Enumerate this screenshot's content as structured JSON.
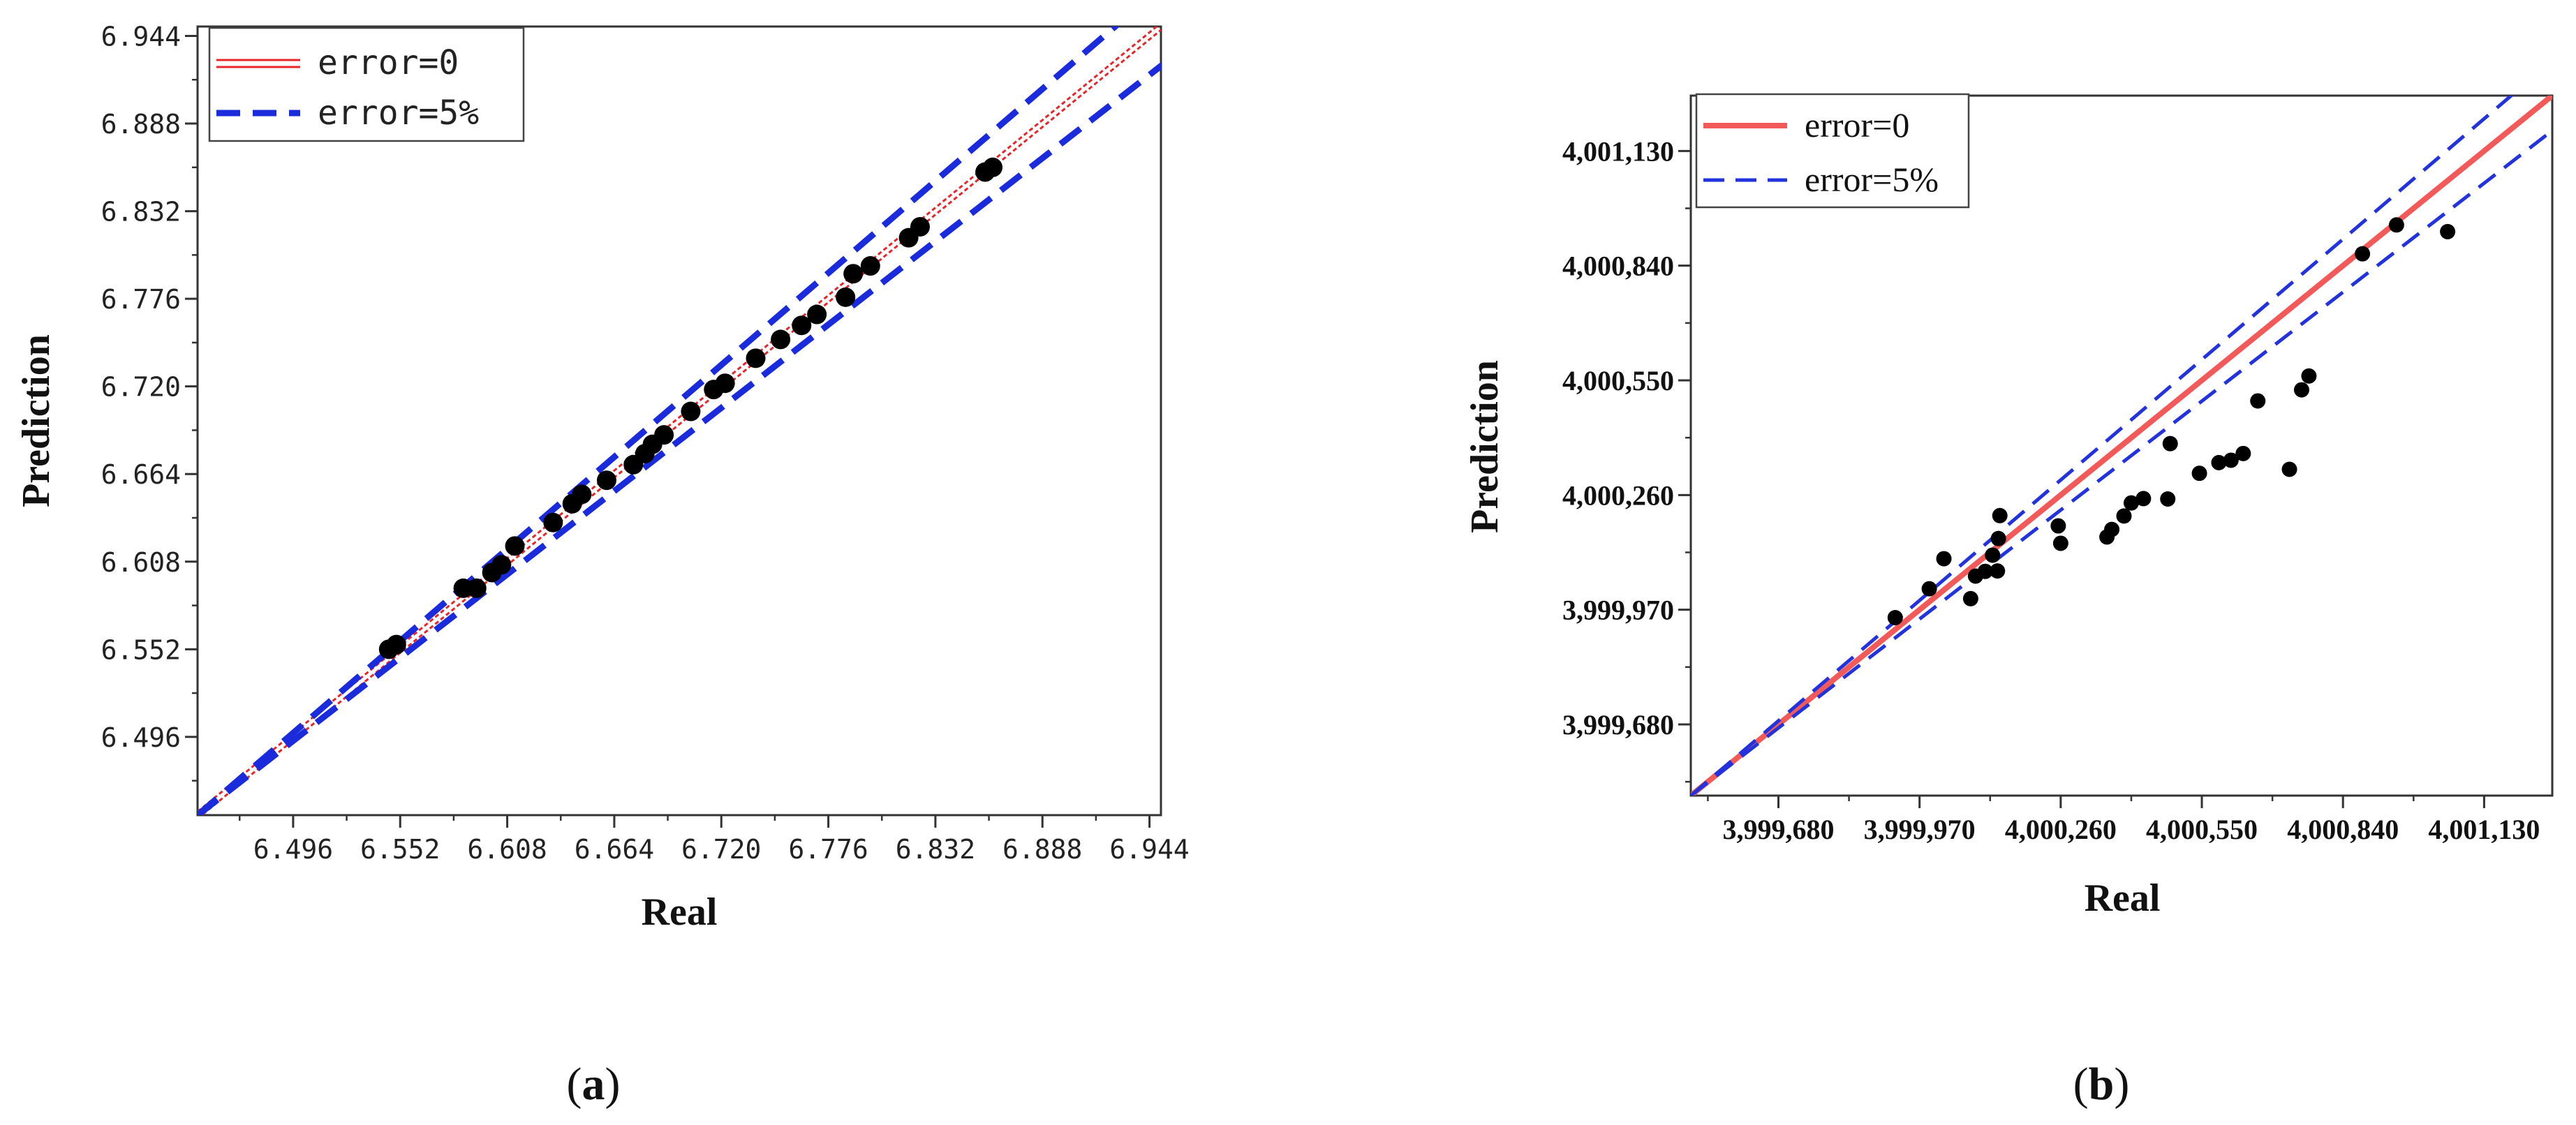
{
  "panels": [
    {
      "label_open": "(",
      "label_letter": "a",
      "label_close": ")"
    },
    {
      "label_open": "(",
      "label_letter": "b",
      "label_close": ")"
    }
  ],
  "chart_data": [
    {
      "type": "scatter",
      "xlabel": "Real",
      "ylabel": "Prediction",
      "xlim": [
        6.446,
        6.95
      ],
      "ylim": [
        6.446,
        6.95
      ],
      "xticks": [
        "6.496",
        "6.552",
        "6.608",
        "6.664",
        "6.720",
        "6.776",
        "6.832",
        "6.888",
        "6.944"
      ],
      "yticks": [
        "6.496",
        "6.552",
        "6.608",
        "6.664",
        "6.720",
        "6.776",
        "6.832",
        "6.888",
        "6.944"
      ],
      "tick_values": [
        6.496,
        6.552,
        6.608,
        6.664,
        6.72,
        6.776,
        6.832,
        6.888,
        6.944
      ],
      "legend_position": "top-left",
      "legend": [
        "error=0",
        "error=5%"
      ],
      "lines": [
        {
          "name": "error=0",
          "slope": 1.0,
          "color": "#e8262a",
          "style": "double"
        },
        {
          "name": "error=5%",
          "slope": 1.05,
          "color": "#1a2bdc",
          "style": "dashed"
        },
        {
          "name": "error=5%",
          "slope": 0.95,
          "color": "#1a2bdc",
          "style": "dashed"
        }
      ],
      "points": {
        "x": [
          6.546,
          6.55,
          6.585,
          6.592,
          6.6,
          6.605,
          6.612,
          6.632,
          6.642,
          6.647,
          6.66,
          6.674,
          6.68,
          6.684,
          6.69,
          6.704,
          6.716,
          6.722,
          6.738,
          6.751,
          6.762,
          6.77,
          6.785,
          6.789,
          6.798,
          6.818,
          6.824,
          6.858,
          6.862
        ],
        "y": [
          6.552,
          6.555,
          6.591,
          6.591,
          6.601,
          6.606,
          6.618,
          6.633,
          6.645,
          6.651,
          6.66,
          6.67,
          6.677,
          6.683,
          6.689,
          6.704,
          6.718,
          6.722,
          6.738,
          6.75,
          6.759,
          6.766,
          6.777,
          6.792,
          6.797,
          6.815,
          6.822,
          6.857,
          6.86
        ]
      },
      "marker_color": "#000000"
    },
    {
      "type": "scatter",
      "xlabel": "Real",
      "ylabel": "Prediction",
      "xlim": [
        3999500,
        4001270
      ],
      "ylim": [
        3999500,
        4001270
      ],
      "xticks": [
        "3,999,680",
        "3,999,970",
        "4,000,260",
        "4,000,550",
        "4,000,840",
        "4,001,130"
      ],
      "yticks": [
        "3,999,680",
        "3,999,970",
        "4,000,260",
        "4,000,550",
        "4,000,840",
        "4,001,130"
      ],
      "tick_values": [
        3999680,
        3999970,
        4000260,
        4000550,
        4000840,
        4001130
      ],
      "legend_position": "top-left",
      "legend": [
        "error=0",
        "error=5%"
      ],
      "lines": [
        {
          "name": "error=0",
          "slope": 1.0,
          "color": "#f25a5a",
          "style": "solid"
        },
        {
          "name": "error=5%",
          "slope": 1.05,
          "color": "#2233dd",
          "style": "dashed"
        },
        {
          "name": "error=5%",
          "slope": 0.95,
          "color": "#2233dd",
          "style": "dashed"
        }
      ],
      "points": {
        "x": [
          3999920,
          3999990,
          4000020,
          4000075,
          4000085,
          4000105,
          4000120,
          4000130,
          4000132,
          4000135,
          4000260,
          4000255,
          4000355,
          4000365,
          4000390,
          4000405,
          4000430,
          4000480,
          4000485,
          4000545,
          4000585,
          4000610,
          4000635,
          4000665,
          4000730,
          4000755,
          4000770,
          4000880,
          4000950,
          4001055
        ],
        "y": [
          3999950,
          4000023,
          4000099,
          3999998,
          4000055,
          4000067,
          4000108,
          4000068,
          4000150,
          4000208,
          4000138,
          4000182,
          4000154,
          4000173,
          4000207,
          4000240,
          4000251,
          4000250,
          4000390,
          4000315,
          4000342,
          4000348,
          4000365,
          4000498,
          4000325,
          4000526,
          4000561,
          4000870,
          4000943,
          4000926
        ]
      },
      "marker_color": "#000000"
    }
  ]
}
